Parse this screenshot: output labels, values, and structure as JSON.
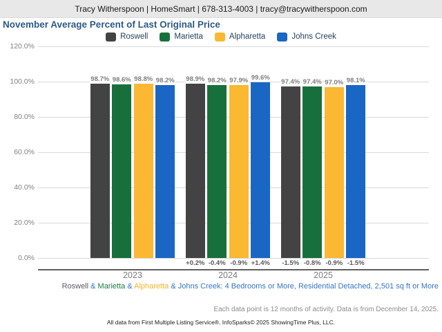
{
  "header": {
    "contact_line": "Tracy Witherspoon | HomeSmart | 678-313-4003 | tracy@tracywitherspoon.com"
  },
  "title": "November Average Percent of Last Original Price",
  "chart_data": {
    "type": "bar",
    "title": "November Average Percent of Last Original Price",
    "categories": [
      "2023",
      "2024",
      "2025"
    ],
    "series": [
      {
        "name": "Roswell",
        "color": "#434343",
        "values": [
          98.7,
          98.9,
          97.4
        ],
        "value_labels": [
          "98.7%",
          "98.9%",
          "97.4%"
        ],
        "change_labels": [
          "",
          "+0.2%",
          "-1.5%"
        ]
      },
      {
        "name": "Marietta",
        "color": "#17703c",
        "values": [
          98.6,
          98.2,
          97.4
        ],
        "value_labels": [
          "98.6%",
          "98.2%",
          "97.4%"
        ],
        "change_labels": [
          "",
          "-0.4%",
          "-0.8%"
        ]
      },
      {
        "name": "Alpharetta",
        "color": "#fbb832",
        "values": [
          98.8,
          97.9,
          97.0
        ],
        "value_labels": [
          "98.8%",
          "97.9%",
          "97.0%"
        ],
        "change_labels": [
          "",
          "-0.9%",
          "-0.9%"
        ]
      },
      {
        "name": "Johns Creek",
        "color": "#1a66c4",
        "values": [
          98.2,
          99.6,
          98.1
        ],
        "value_labels": [
          "98.2%",
          "99.6%",
          "98.1%"
        ],
        "change_labels": [
          "",
          "+1.4%",
          "-1.5%"
        ]
      }
    ],
    "xlabel": "",
    "ylabel": "",
    "ylim": [
      0,
      120
    ],
    "ytick_values": [
      0,
      20,
      40,
      60,
      80,
      100,
      120
    ],
    "ytick_labels": [
      "0.0%",
      "20.0%",
      "40.0%",
      "60.0%",
      "80.0%",
      "100.0%",
      "120.0%"
    ],
    "grid": true,
    "legend_position": "top"
  },
  "footer": {
    "criteria_parts": [
      {
        "text": "Roswell",
        "color": "#58595b"
      },
      {
        "text": " & ",
        "color": "#3575c4"
      },
      {
        "text": "Marietta",
        "color": "#1e7a43"
      },
      {
        "text": " & ",
        "color": "#3575c4"
      },
      {
        "text": "Alpharetta",
        "color": "#f6b32b"
      },
      {
        "text": " & ",
        "color": "#3575c4"
      },
      {
        "text": "Johns Creek",
        "color": "#3575c4"
      },
      {
        "text": ": 4 Bedrooms or More, Residential Detached, 2,501 sq ft or More",
        "color": "#3575c4"
      }
    ],
    "data_note": "Each data point is 12 months of activity. Data is from December 14, 2025.",
    "attribution": "All data from First Multiple Listing Service®. InfoSparks© 2025 ShowingTime Plus, LLC."
  }
}
